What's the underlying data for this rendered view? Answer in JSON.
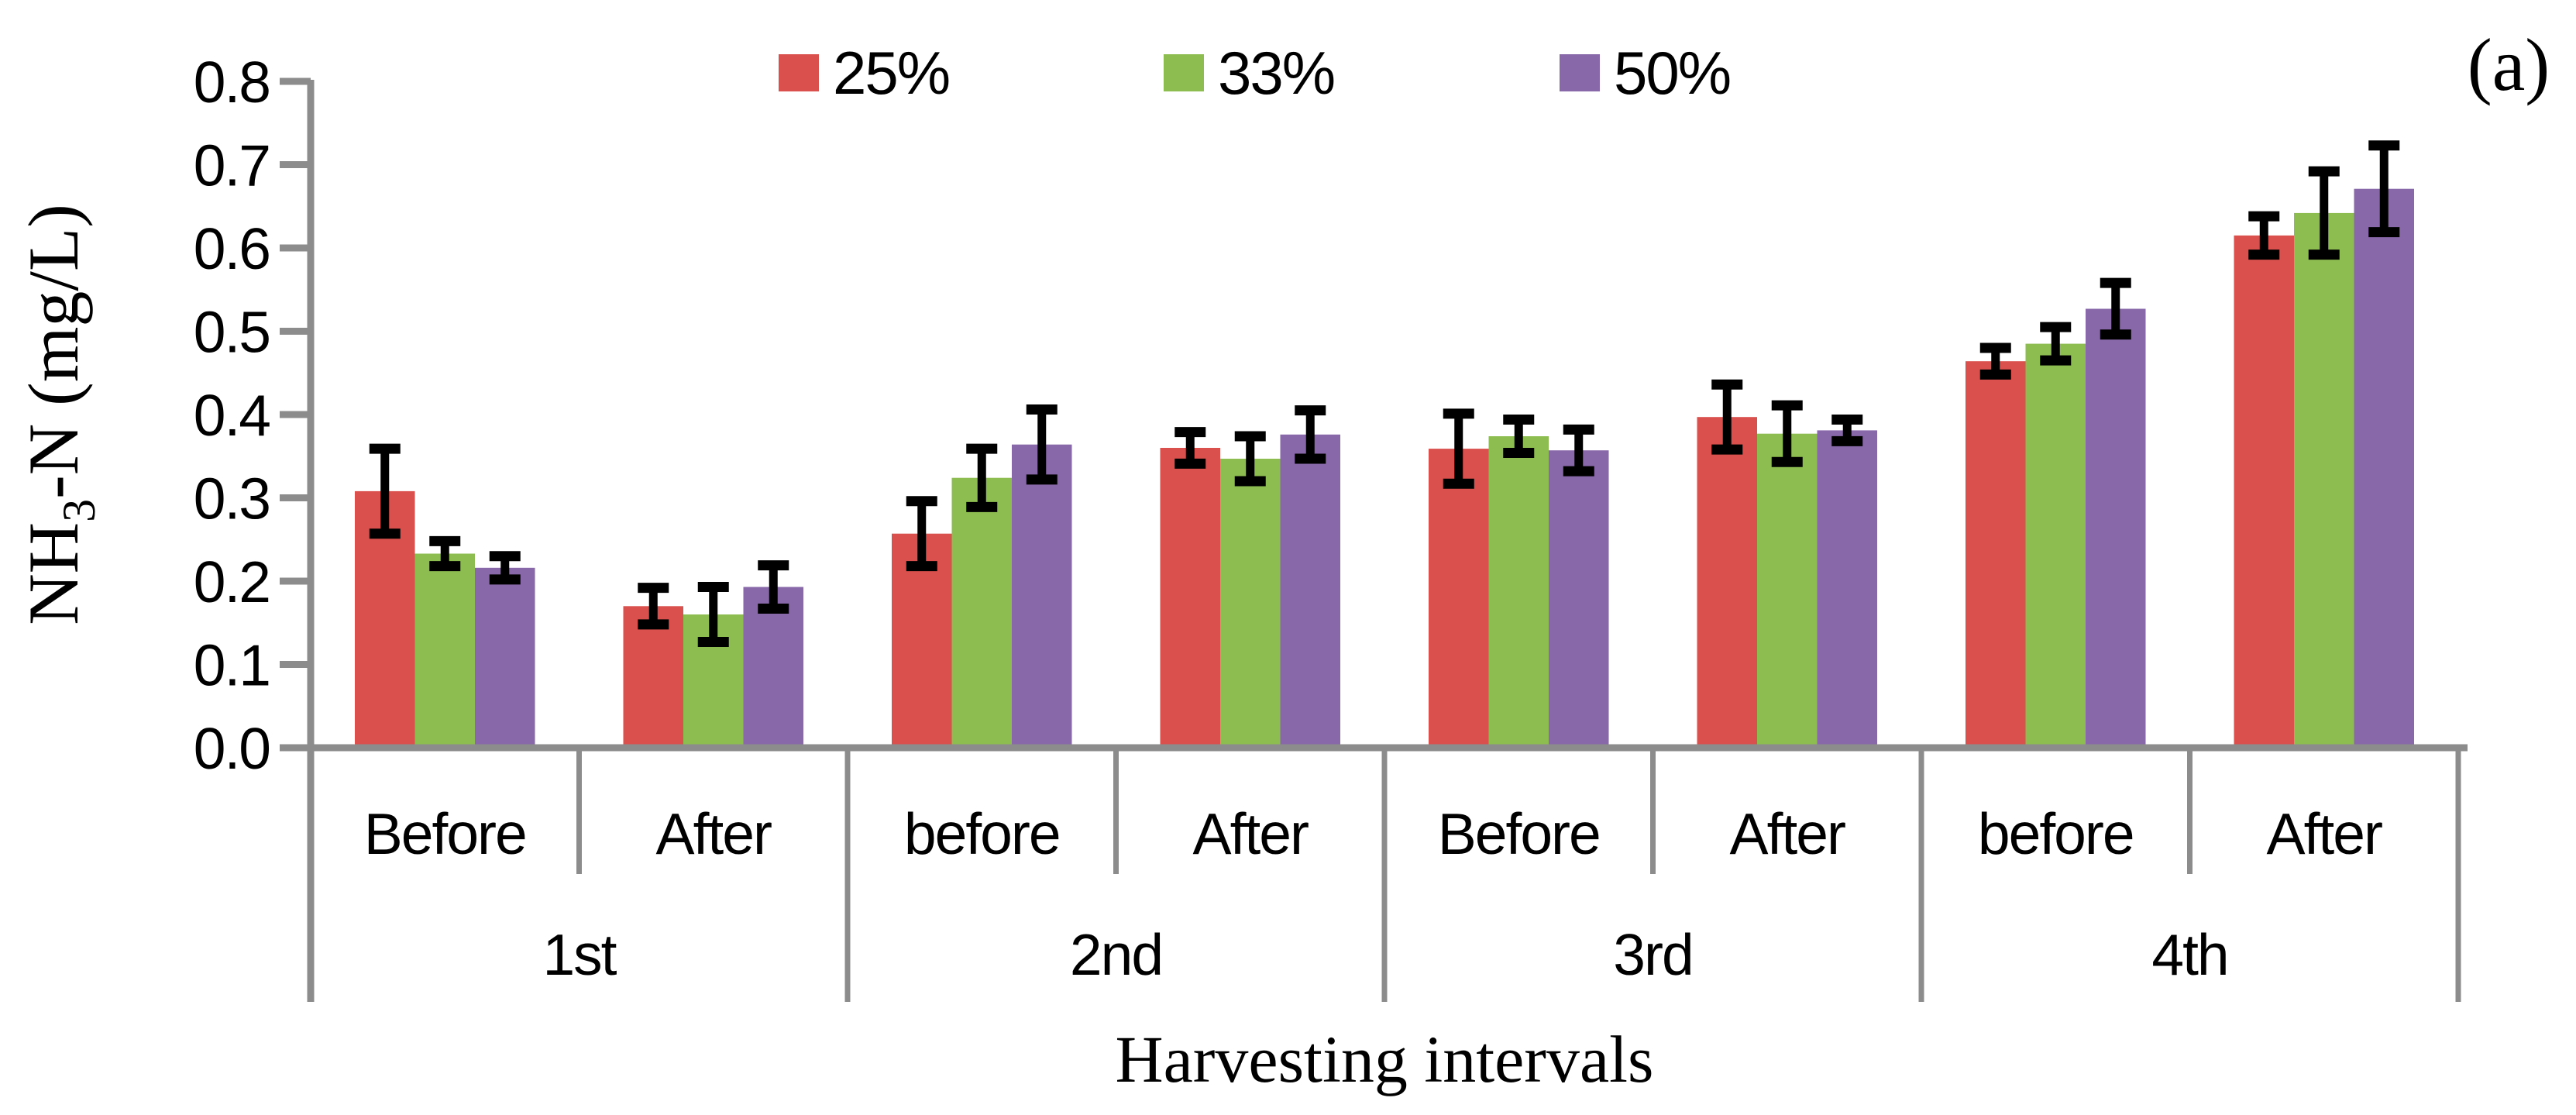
{
  "figure": {
    "corner_label": "(a)",
    "background": "#ffffff",
    "axis_color": "#8c8c8c",
    "error_bar_color": "#000000"
  },
  "chart_data": {
    "type": "bar",
    "title": "",
    "xlabel": "Harvesting intervals",
    "ylabel_parts": {
      "prefix": "NH",
      "subscript": "3",
      "suffix": "-N (mg/L)"
    },
    "ylim": [
      0.0,
      0.8
    ],
    "ytick_step": 0.1,
    "ytick_labels": [
      "0.0",
      "0.1",
      "0.2",
      "0.3",
      "0.4",
      "0.5",
      "0.6",
      "0.7",
      "0.8"
    ],
    "grid": false,
    "error_bars": true,
    "legend_position": "top",
    "intervals": [
      {
        "label": "1st",
        "conditions": [
          "Before",
          "After"
        ]
      },
      {
        "label": "2nd",
        "conditions": [
          "before",
          "After"
        ]
      },
      {
        "label": "3rd",
        "conditions": [
          "Before",
          "After"
        ]
      },
      {
        "label": "4th",
        "conditions": [
          "before",
          "After"
        ]
      }
    ],
    "categories": [
      "Before",
      "After",
      "before",
      "After",
      "Before",
      "After",
      "before",
      "After"
    ],
    "series": [
      {
        "name": "25%",
        "color": "#d9504c",
        "values": [
          0.308,
          0.17,
          0.257,
          0.36,
          0.359,
          0.397,
          0.464,
          0.615
        ],
        "errors": [
          0.051,
          0.022,
          0.039,
          0.019,
          0.042,
          0.039,
          0.016,
          0.023
        ]
      },
      {
        "name": "33%",
        "color": "#8dbc51",
        "values": [
          0.233,
          0.16,
          0.324,
          0.347,
          0.374,
          0.377,
          0.485,
          0.642
        ],
        "errors": [
          0.015,
          0.033,
          0.035,
          0.027,
          0.02,
          0.034,
          0.02,
          0.05
        ]
      },
      {
        "name": "50%",
        "color": "#8968a9",
        "values": [
          0.216,
          0.193,
          0.364,
          0.376,
          0.357,
          0.381,
          0.527,
          0.671
        ],
        "errors": [
          0.014,
          0.026,
          0.042,
          0.029,
          0.025,
          0.013,
          0.031,
          0.052
        ]
      }
    ]
  }
}
